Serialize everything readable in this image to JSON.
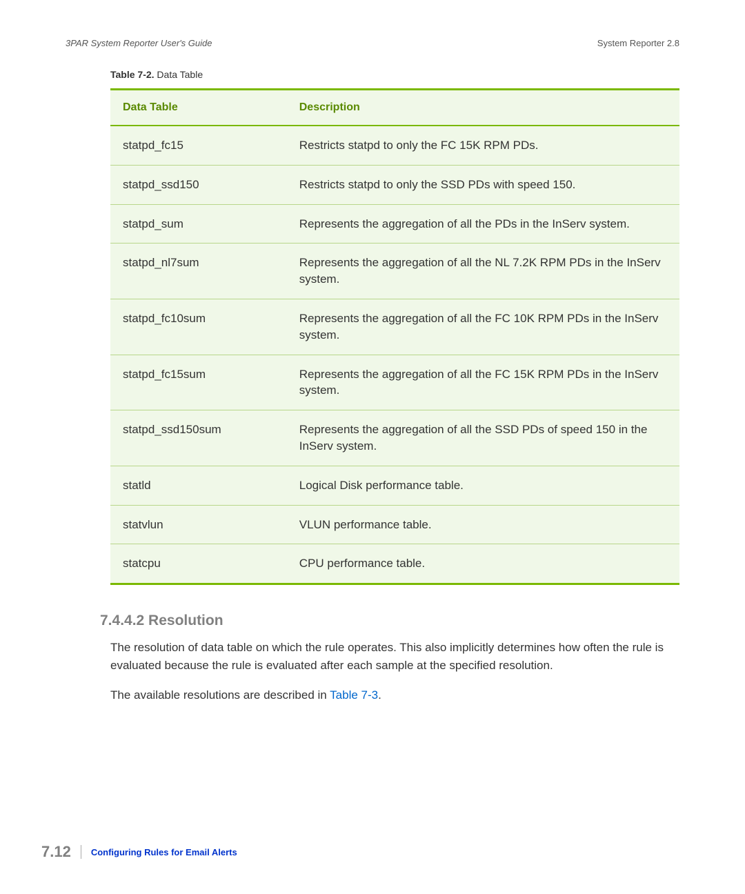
{
  "header": {
    "left": "3PAR System Reporter User's Guide",
    "right": "System Reporter 2.8"
  },
  "table_caption": {
    "bold": "Table 7-2.",
    "rest": "  Data Table"
  },
  "table": {
    "headers": [
      "Data Table",
      "Description"
    ],
    "rows": [
      [
        "statpd_fc15",
        "Restricts statpd to only the FC 15K RPM PDs."
      ],
      [
        "statpd_ssd150",
        "Restricts statpd to only the SSD PDs with speed 150."
      ],
      [
        "statpd_sum",
        "Represents the aggregation of all the PDs in the InServ system."
      ],
      [
        "statpd_nl7sum",
        "Represents the aggregation of all the NL 7.2K RPM PDs in the InServ system."
      ],
      [
        "statpd_fc10sum",
        "Represents the aggregation of all the FC 10K RPM PDs in the InServ system."
      ],
      [
        "statpd_fc15sum",
        "Represents the aggregation of all the FC 15K RPM PDs in the InServ system."
      ],
      [
        "statpd_ssd150sum",
        "Represents the aggregation of all the SSD PDs of speed 150 in the InServ system."
      ],
      [
        "statld",
        "Logical Disk performance table."
      ],
      [
        "statvlun",
        "VLUN performance table."
      ],
      [
        "statcpu",
        "CPU performance table."
      ]
    ]
  },
  "section": {
    "heading": "7.4.4.2 Resolution",
    "para1": "The resolution of data table on which the rule operates. This also implicitly determines how often the rule is evaluated because the rule is evaluated after each sample at the specified resolution.",
    "para2_pre": "The available resolutions are described in ",
    "para2_link": "Table 7-3",
    "para2_post": "."
  },
  "footer": {
    "page_number": "7.12",
    "text": "Configuring Rules for Email Alerts"
  }
}
